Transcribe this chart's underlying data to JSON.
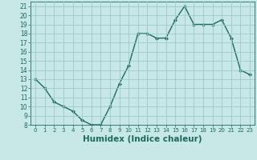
{
  "x": [
    0,
    1,
    2,
    3,
    4,
    5,
    6,
    7,
    8,
    9,
    10,
    11,
    12,
    13,
    14,
    15,
    16,
    17,
    18,
    19,
    20,
    21,
    22,
    23
  ],
  "y": [
    13,
    12,
    10.5,
    10,
    9.5,
    8.5,
    8,
    8,
    10,
    12.5,
    14.5,
    18,
    18,
    17.5,
    17.5,
    19.5,
    21,
    19,
    19,
    19,
    19.5,
    17.5,
    14,
    13.5
  ],
  "line_color": "#1a6b5a",
  "marker": "D",
  "marker_size": 2,
  "bg_color": "#c8e8e8",
  "grid_color": "#a0c8c8",
  "xlabel": "Humidex (Indice chaleur)",
  "xlim": [
    -0.5,
    23.5
  ],
  "ylim": [
    8,
    21.5
  ],
  "yticks": [
    8,
    9,
    10,
    11,
    12,
    13,
    14,
    15,
    16,
    17,
    18,
    19,
    20,
    21
  ],
  "xticks": [
    0,
    1,
    2,
    3,
    4,
    5,
    6,
    7,
    8,
    9,
    10,
    11,
    12,
    13,
    14,
    15,
    16,
    17,
    18,
    19,
    20,
    21,
    22,
    23
  ],
  "tick_fontsize": 5.5,
  "xlabel_fontsize": 7.5,
  "tick_color": "#1a6b5a",
  "axis_color": "#1a6b5a",
  "linewidth": 1.0
}
